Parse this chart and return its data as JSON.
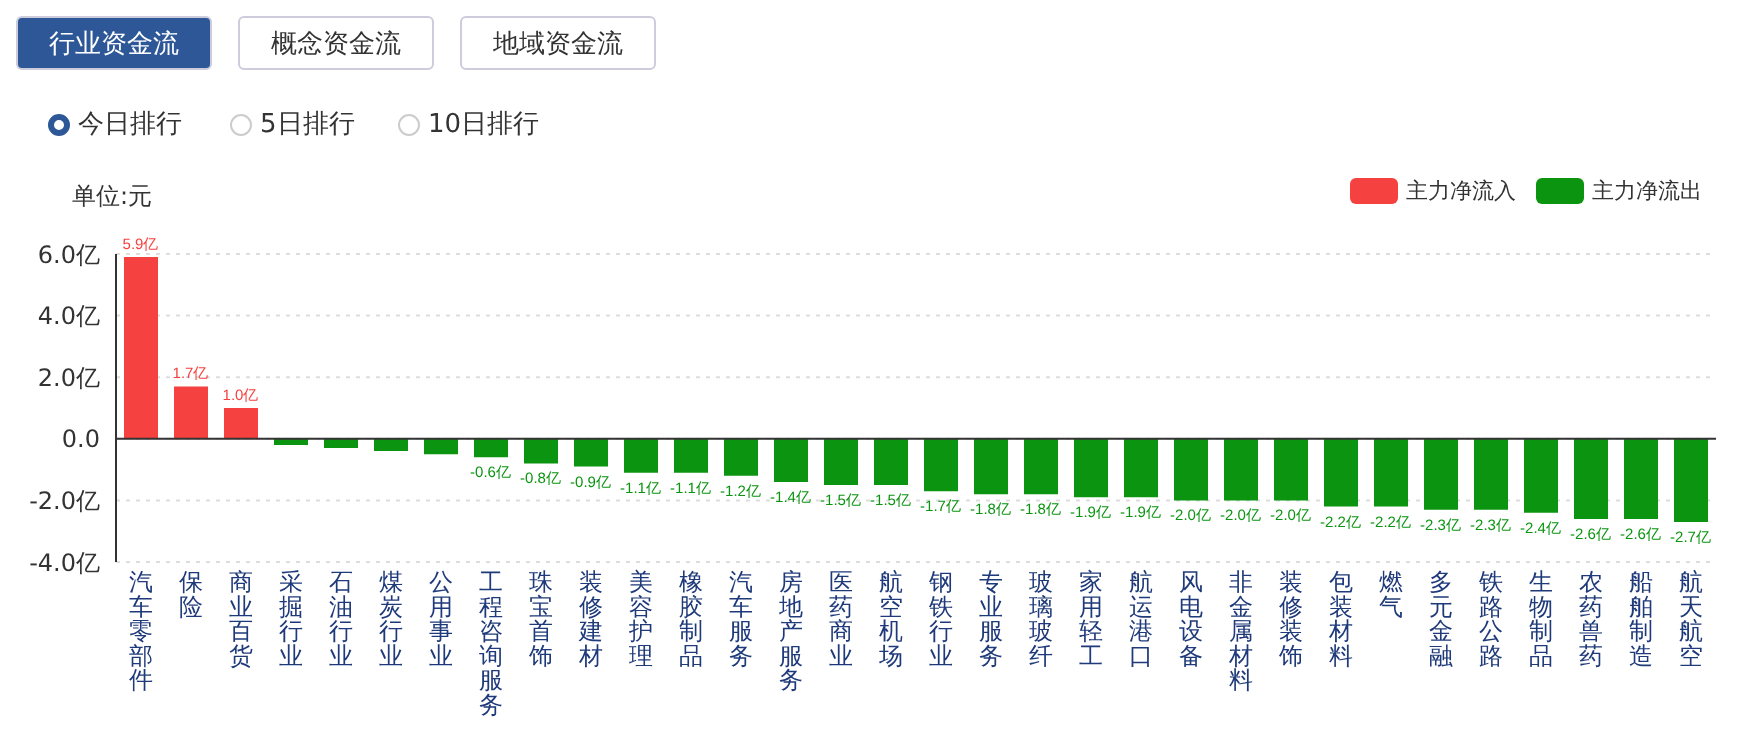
{
  "chart_data": {
    "type": "bar",
    "ylabel": "单位:元",
    "annotations": [
      "行业资金流",
      "概念资金流",
      "地域资金流",
      "今日排行",
      "5日排行",
      "10日排行"
    ],
    "categories": [
      "汽车零部件",
      "保险",
      "商业百货",
      "采掘行业",
      "石油行业",
      "煤炭行业",
      "公用事业",
      "工程咨询服务",
      "珠宝首饰",
      "装修建材",
      "美容护理",
      "橡胶制品",
      "汽车服务",
      "房地产服务",
      "医药商业",
      "航空机场",
      "钢铁行业",
      "专业服务",
      "玻璃玻纤",
      "家用轻工",
      "航运港口",
      "风电设备",
      "非金属材料",
      "装修装饰",
      "包装材料",
      "燃气",
      "多元金融",
      "铁路公路",
      "生物制品",
      "农药兽药",
      "船舶制造",
      "航天航空"
    ],
    "stacked": true,
    "series": [
      {
        "name": "主力净流入",
        "color": "#f5413f",
        "values": [
          5.9,
          1.7,
          1.0,
          null,
          null,
          null,
          null,
          null,
          null,
          null,
          null,
          null,
          null,
          null,
          null,
          null,
          null,
          null,
          null,
          null,
          null,
          null,
          null,
          null,
          null,
          null,
          null,
          null,
          null,
          null,
          null,
          null
        ],
        "value_labels": [
          "5.9亿",
          "1.7亿",
          "1.0亿",
          null,
          null,
          null,
          null,
          null,
          null,
          null,
          null,
          null,
          null,
          null,
          null,
          null,
          null,
          null,
          null,
          null,
          null,
          null,
          null,
          null,
          null,
          null,
          null,
          null,
          null,
          null,
          null,
          null
        ]
      },
      {
        "name": "主力净流出",
        "color": "#0b9410",
        "values": [
          null,
          null,
          null,
          -0.2,
          -0.3,
          -0.4,
          -0.5,
          -0.6,
          -0.8,
          -0.9,
          -1.1,
          -1.1,
          -1.2,
          -1.4,
          -1.5,
          -1.5,
          -1.7,
          -1.8,
          -1.8,
          -1.9,
          -1.9,
          -2.0,
          -2.0,
          -2.0,
          -2.2,
          -2.2,
          -2.3,
          -2.3,
          -2.4,
          -2.6,
          -2.6,
          -2.7
        ],
        "value_labels": [
          null,
          null,
          null,
          null,
          null,
          null,
          null,
          "-0.6亿",
          "-0.8亿",
          "-0.9亿",
          "-1.1亿",
          "-1.1亿",
          "-1.2亿",
          "-1.4亿",
          "-1.5亿",
          "-1.5亿",
          "-1.7亿",
          "-1.8亿",
          "-1.8亿",
          "-1.9亿",
          "-1.9亿",
          "-2.0亿",
          "-2.0亿",
          "-2.0亿",
          "-2.2亿",
          "-2.2亿",
          "-2.3亿",
          "-2.3亿",
          "-2.4亿",
          "-2.6亿",
          "-2.6亿",
          "-2.7亿"
        ]
      }
    ],
    "ylim": [
      -4,
      6
    ],
    "yticks": [
      {
        "value": -4,
        "label": "-4.0亿"
      },
      {
        "value": -2,
        "label": "-2.0亿"
      },
      {
        "value": 0,
        "label": "0.0"
      },
      {
        "value": 2,
        "label": "2.0亿"
      },
      {
        "value": 4,
        "label": "4.0亿"
      },
      {
        "value": 6,
        "label": "6.0亿"
      }
    ],
    "grid": "y",
    "legend": "top right"
  }
}
